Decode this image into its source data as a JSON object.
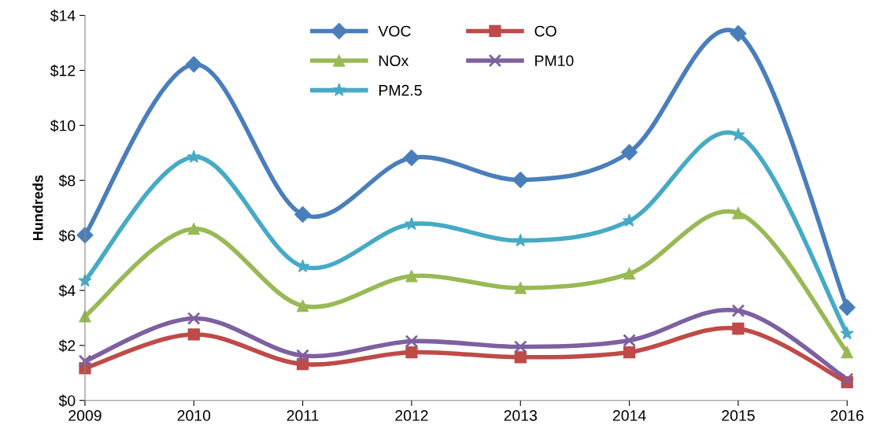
{
  "chart_data": {
    "type": "line",
    "ylabel": "Hundreds",
    "x": [
      2009,
      2010,
      2011,
      2012,
      2013,
      2014,
      2015,
      2016
    ],
    "xlim": [
      2009,
      2016
    ],
    "xticks": [
      2009,
      2010,
      2011,
      2012,
      2013,
      2014,
      2015,
      2016
    ],
    "ylim": [
      0,
      14
    ],
    "yticks": [
      {
        "value": 0,
        "label": "$0"
      },
      {
        "value": 2,
        "label": "$2"
      },
      {
        "value": 4,
        "label": "$4"
      },
      {
        "value": 6,
        "label": "$6"
      },
      {
        "value": 8,
        "label": "$8"
      },
      {
        "value": 10,
        "label": "$10"
      },
      {
        "value": 12,
        "label": "$12"
      },
      {
        "value": 14,
        "label": "$14"
      }
    ],
    "grid": false,
    "legend": "top",
    "line_style": "solid",
    "series": [
      {
        "name": "VOC",
        "color": "#4a7ebb",
        "marker": "diamond",
        "values": [
          6.01,
          12.22,
          6.76,
          8.82,
          8.02,
          9.02,
          13.34,
          3.38
        ]
      },
      {
        "name": "CO",
        "color": "#be4b48",
        "marker": "square",
        "values": [
          1.17,
          2.4,
          1.32,
          1.75,
          1.57,
          1.75,
          2.61,
          0.66
        ]
      },
      {
        "name": "NOx",
        "color": "#98b954",
        "marker": "triangle",
        "values": [
          3.06,
          6.24,
          3.44,
          4.52,
          4.09,
          4.61,
          6.81,
          1.75
        ]
      },
      {
        "name": "PM10",
        "color": "#7d60a0",
        "marker": "cross",
        "values": [
          1.43,
          2.98,
          1.63,
          2.15,
          1.95,
          2.18,
          3.26,
          0.77
        ]
      },
      {
        "name": "PM2.5",
        "color": "#46aac5",
        "marker": "star",
        "values": [
          4.35,
          8.85,
          4.87,
          6.41,
          5.81,
          6.53,
          9.65,
          2.43
        ]
      }
    ]
  }
}
